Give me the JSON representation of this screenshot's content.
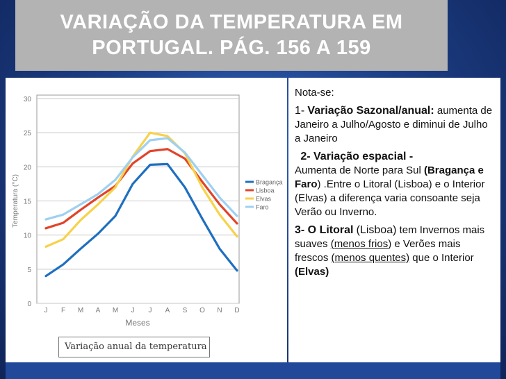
{
  "slide": {
    "title_line1": "VARIAÇÃO DA TEMPERATURA EM",
    "title_line2": "PORTUGAL. PÁG. 156 A 159",
    "background_color": "#1d3f86",
    "title_bg_color": "#b3b3b3"
  },
  "notes": {
    "intro": "Nota-se:",
    "item1_num": "1-",
    "item1_heading": "Variação Sazonal/anual:",
    "item1_text": "aumenta de Janeiro a Julho/Agosto e diminui de Julho a Janeiro",
    "item2_heading": "2- Variação espacial -",
    "item2_text_a": "Aumenta de Norte para Sul",
    "item2_bold": "(Bragança e Faro",
    "item2_text_b": ") .Entre o Litoral (Lisboa) e o Interior (Elvas) a diferença varia consoante seja Verão ou Inverno.",
    "item3_heading": "3- O Litoral",
    "item3_place": "(Lisboa)",
    "item3_text_a": "tem Invernos mais suaves",
    "item3_link1": "(menos frios",
    "item3_text_b": ") e Verões mais frescos",
    "item3_link2": "(menos quentes)",
    "item3_text_c": "que o Interior",
    "item3_bold_end": "(Elvas)"
  },
  "chart_caption": "Variação anual da temperatura",
  "chart_data": {
    "type": "line",
    "ylabel": "Temperatura (°C)",
    "xlabel": "Meses",
    "categories": [
      "J",
      "F",
      "M",
      "A",
      "M",
      "J",
      "J",
      "A",
      "S",
      "O",
      "N",
      "D"
    ],
    "ylim": [
      0,
      30
    ],
    "yticks": [
      0,
      5,
      10,
      15,
      20,
      25,
      30
    ],
    "legend_position": "right",
    "series": [
      {
        "name": "Bragança",
        "color": "#1f6fc0",
        "values": [
          4.0,
          5.7,
          8.0,
          10.2,
          12.8,
          17.5,
          20.3,
          20.4,
          17.0,
          12.4,
          8.0,
          4.8
        ]
      },
      {
        "name": "Lisboa",
        "color": "#e0442a",
        "values": [
          11.0,
          11.8,
          13.7,
          15.5,
          17.2,
          20.5,
          22.3,
          22.6,
          21.2,
          17.8,
          14.5,
          11.7
        ]
      },
      {
        "name": "Elvas",
        "color": "#f7d24a",
        "values": [
          8.3,
          9.4,
          12.2,
          14.5,
          17.0,
          21.5,
          25.0,
          24.5,
          22.0,
          17.0,
          13.0,
          9.8
        ]
      },
      {
        "name": "Faro",
        "color": "#9fd0f2",
        "values": [
          12.3,
          13.0,
          14.5,
          16.0,
          18.1,
          21.4,
          23.9,
          24.2,
          22.1,
          18.8,
          15.5,
          12.8
        ]
      }
    ]
  }
}
